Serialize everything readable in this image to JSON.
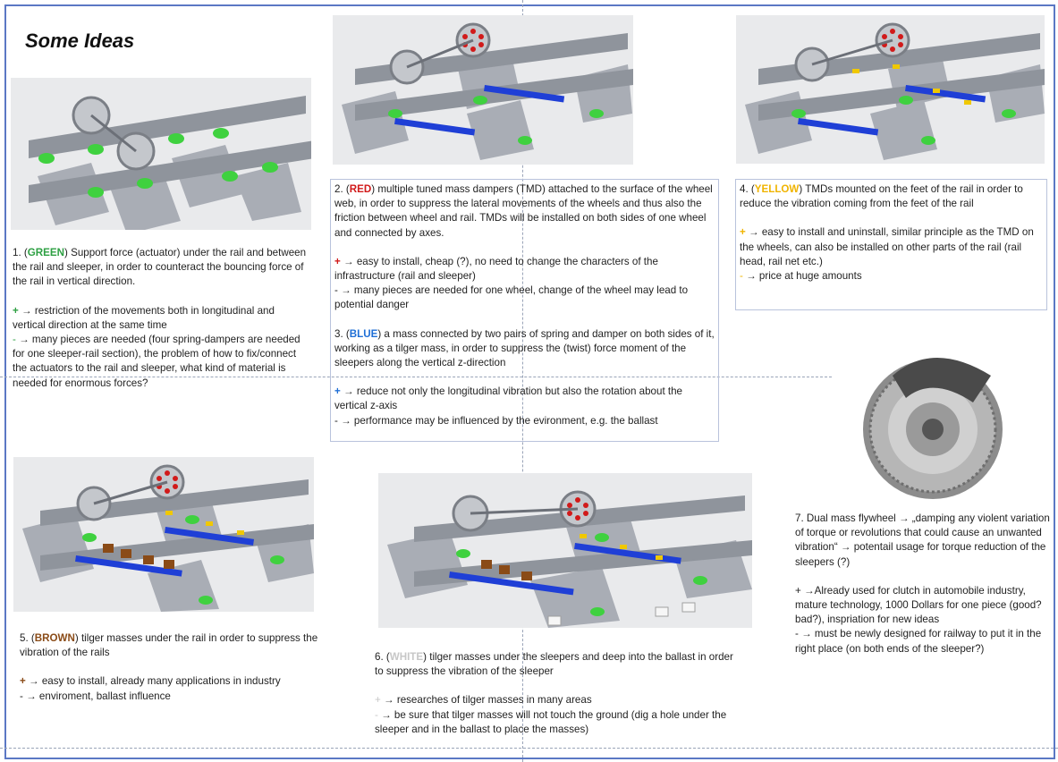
{
  "title": "Some Ideas",
  "arrow": "→",
  "colors": {
    "frame": "#5b78c4",
    "green": "#2ea043",
    "red": "#d11a1a",
    "blue": "#1f6fd6",
    "yellow": "#f0b400",
    "brown": "#8a4b17",
    "white": "#c7c7c7"
  },
  "idea1": {
    "num": "1. (",
    "tag": "GREEN",
    "close": ")",
    "desc": " Support force (actuator) under the rail and between the rail and sleeper, in order to counteract the bouncing force of the rail in vertical direction.",
    "pro_sign": "+",
    "pro": " restriction of the movements both in longitudinal and vertical direction at the same time",
    "con_sign": "-",
    "con": " many pieces are needed (four spring-dampers are needed for one sleeper-rail section), the problem of how to fix/connect the actuators to the rail and sleeper, what kind of material is needed for enormous forces?"
  },
  "idea2": {
    "num": "2. (",
    "tag": "RED",
    "close": ")",
    "desc": " multiple tuned mass dampers (TMD) attached to the surface of the wheel web, in order to suppress the lateral movements of the wheels and thus also the friction between wheel and rail. TMDs will be installed on both sides of one wheel and connected by axes.",
    "pro_sign": "+",
    "pro": " easy to install, cheap (?), no need to change the characters of the infrastructure (rail and sleeper)",
    "con_sign": "-",
    "con": " many pieces are needed for one wheel, change of the wheel may lead to potential danger"
  },
  "idea3": {
    "num": "3. (",
    "tag": "BLUE",
    "close": ")",
    "desc": " a mass connected by two pairs of spring and damper on both sides of it, working as a tilger mass, in order to suppress the (twist) force moment of the sleepers along the vertical z-direction",
    "pro_sign": "+",
    "pro": " reduce not only the longitudinal vibration but also the rotation about the vertical z-axis",
    "con_sign": "-",
    "con": " performance may be influenced by the evironment, e.g. the ballast"
  },
  "idea4": {
    "num": "4. (",
    "tag": "YELLOW",
    "close": ")",
    "desc": " TMDs mounted on the feet of the rail in order to reduce the vibration coming from the feet of the rail",
    "pro_sign": "+",
    "pro": " easy to install and uninstall, similar principle as the TMD on the wheels, can also be installed on other parts of the rail (rail head, rail net etc.)",
    "con_sign": "-",
    "con": " price at huge amounts"
  },
  "idea5": {
    "num": "5. (",
    "tag": "BROWN",
    "close": ")",
    "desc": " tilger masses under the rail in order to suppress the vibration of the rails",
    "pro_sign": "+",
    "pro": " easy to install, already many applications in industry",
    "con_sign": "-",
    "con": " enviroment, ballast influence"
  },
  "idea6": {
    "num": "6. (",
    "tag": "WHITE",
    "close": ")",
    "desc": " tilger masses under the sleepers and deep into the ballast in order to suppress the vibration of the sleeper",
    "pro_sign": "+",
    "pro": " researches of tilger masses in many areas",
    "con_sign": "-",
    "con": " be sure that tilger masses will not touch the ground (dig a hole under the sleeper and in the ballast to place the masses)"
  },
  "idea7": {
    "desc": "7. Dual mass flywheel → „damping any violent variation of torque or revolutions that could cause an unwanted vibration“ → potentail usage for torque reduction of the sleepers (?)",
    "pro": "+ →Already used for clutch in automobile industry, mature technology, 1000 Dollars for one piece (good?bad?), inspriation for new ideas",
    "con": "- → must be newly designed for railway to put it in the right place (on both ends of the sleeper?)"
  },
  "images": [
    {
      "name": "green-actuator-model",
      "accent": "#33cc33"
    },
    {
      "name": "red-wheel-tmd-model",
      "accent": "#d11a1a"
    },
    {
      "name": "yellow-rail-foot-tmd-model",
      "accent": "#f0c800"
    },
    {
      "name": "brown-tilger-mass-model",
      "accent": "#8a4b17"
    },
    {
      "name": "white-tilger-mass-model",
      "accent": "#f2f2f2"
    },
    {
      "name": "dual-mass-flywheel-photo",
      "accent": "#8c8c8c"
    }
  ]
}
